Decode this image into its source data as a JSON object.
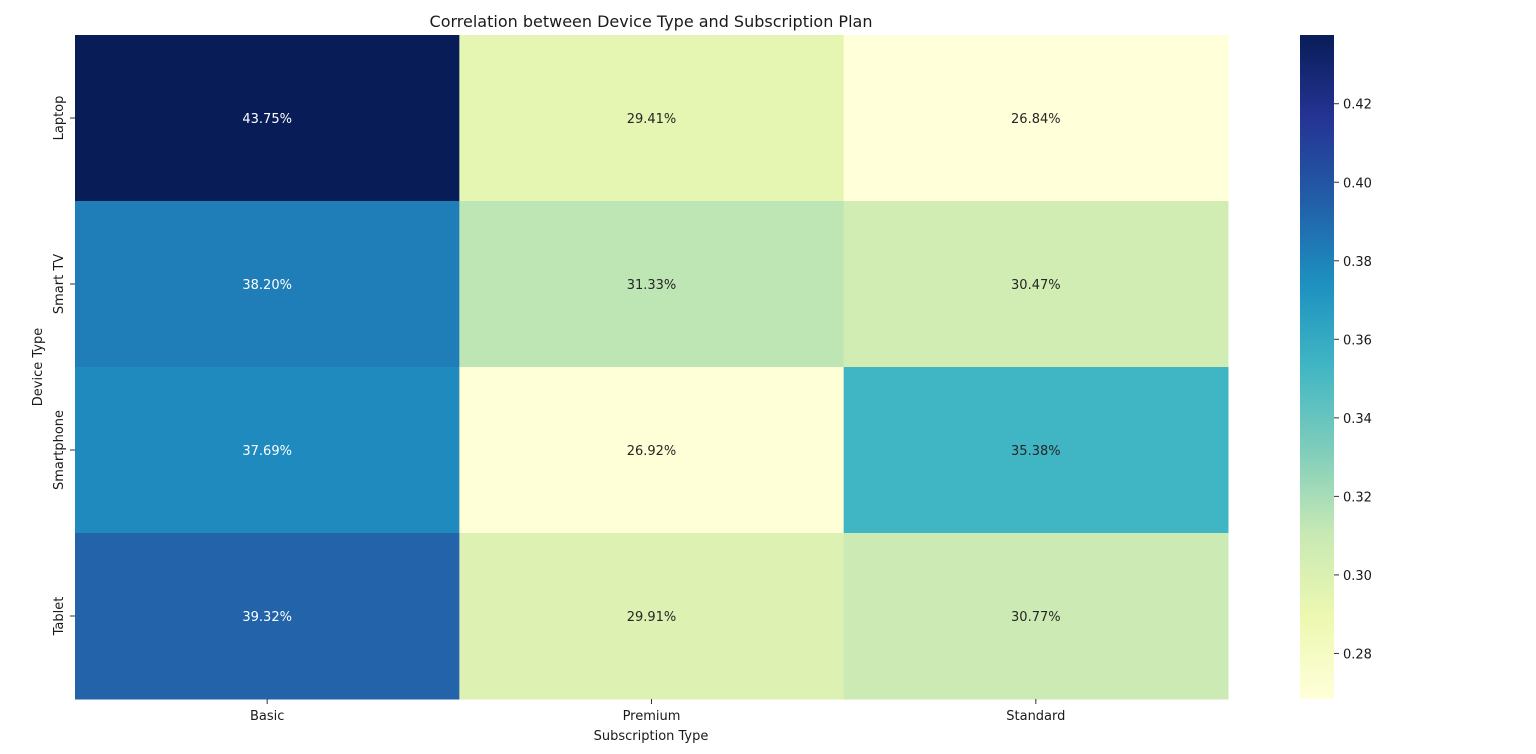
{
  "chart_data": {
    "type": "heatmap",
    "title": "Correlation between Device Type and Subscription Plan",
    "xlabel": "Subscription Type",
    "ylabel": "Device Type",
    "x_categories": [
      "Basic",
      "Premium",
      "Standard"
    ],
    "y_categories": [
      "Laptop",
      "Smart TV",
      "Smartphone",
      "Tablet"
    ],
    "values": [
      [
        0.4375,
        0.2941,
        0.2684
      ],
      [
        0.382,
        0.3133,
        0.3047
      ],
      [
        0.3769,
        0.2692,
        0.3538
      ],
      [
        0.3932,
        0.2991,
        0.3077
      ]
    ],
    "cell_labels": [
      [
        "43.75%",
        "29.41%",
        "26.84%"
      ],
      [
        "38.20%",
        "31.33%",
        "30.47%"
      ],
      [
        "37.69%",
        "26.92%",
        "35.38%"
      ],
      [
        "39.32%",
        "29.91%",
        "30.77%"
      ]
    ],
    "colormap": "YlGnBu",
    "color_range": [
      0.2684,
      0.4375
    ],
    "colorbar": {
      "ticks": [
        0.28,
        0.3,
        0.32,
        0.34,
        0.36,
        0.38,
        0.4,
        0.42
      ],
      "tick_labels": [
        "0.28",
        "0.30",
        "0.32",
        "0.34",
        "0.36",
        "0.38",
        "0.40",
        "0.42"
      ]
    }
  }
}
